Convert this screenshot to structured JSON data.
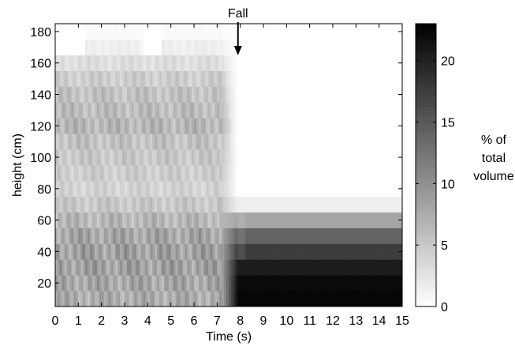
{
  "chart_data": {
    "type": "heatmap",
    "title": "",
    "xlabel": "Time (s)",
    "ylabel": "height (cm)",
    "xlim": [
      0,
      15
    ],
    "ylim": [
      5,
      185
    ],
    "x_ticks": [
      "0",
      "1",
      "2",
      "3",
      "4",
      "5",
      "6",
      "7",
      "8",
      "9",
      "10",
      "11",
      "12",
      "13",
      "14",
      "15"
    ],
    "y_ticks": [
      "20",
      "40",
      "60",
      "80",
      "100",
      "120",
      "140",
      "160",
      "180"
    ],
    "colorbar": {
      "label_lines": [
        "% of",
        "total",
        "volume"
      ],
      "range": [
        0,
        23
      ],
      "ticks": [
        "0",
        "5",
        "10",
        "15",
        "20"
      ],
      "colormap": "gray (white = 0, black = max)"
    },
    "annotation": {
      "text": "Fall",
      "x": 7.9
    },
    "fall_time_s": 7.9,
    "height_bins_cm": [
      10,
      20,
      30,
      40,
      50,
      60,
      70,
      80,
      90,
      100,
      110,
      120,
      130,
      140,
      150,
      160,
      170,
      180
    ],
    "pre_fall_volume_pct": [
      7.5,
      8.0,
      8.5,
      8.5,
      8.0,
      6.5,
      5.0,
      4.0,
      4.5,
      5.0,
      5.5,
      6.5,
      6.0,
      5.5,
      4.5,
      3.0,
      1.5,
      0.5
    ],
    "post_fall_volume_pct": [
      22.5,
      22.0,
      20.5,
      17.5,
      14.0,
      8.0,
      1.5,
      0,
      0,
      0,
      0,
      0,
      0,
      0,
      0,
      0,
      0,
      0
    ]
  }
}
